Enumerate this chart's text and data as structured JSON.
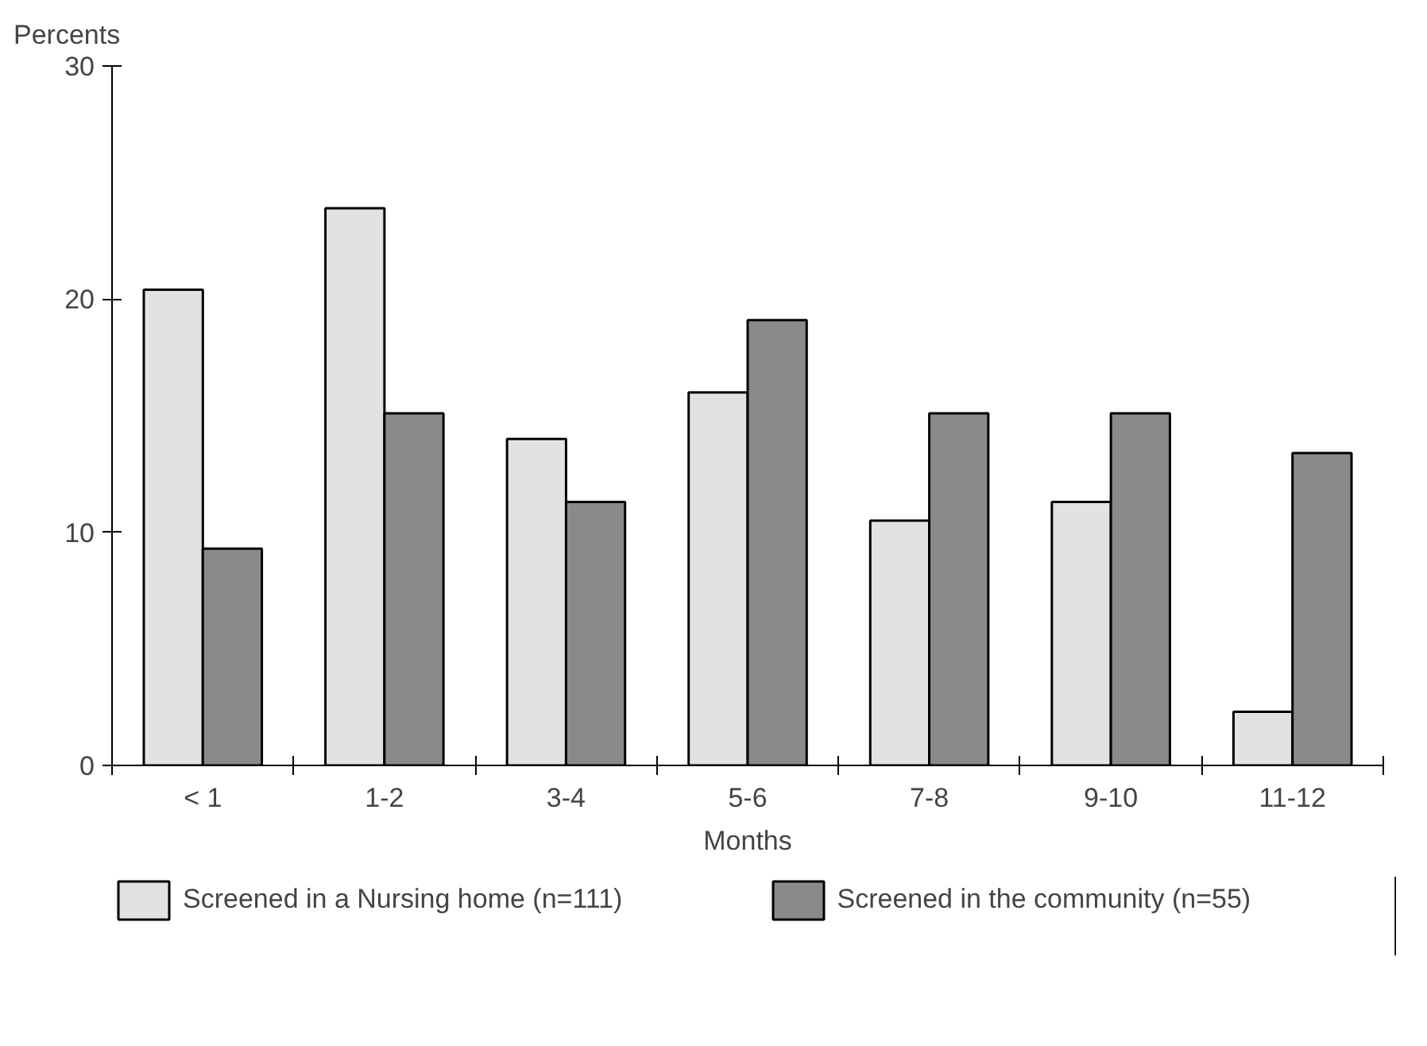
{
  "chart_data": {
    "type": "bar",
    "xlabel": "Months",
    "ylabel": "Percents",
    "categories": [
      "< 1",
      "1-2",
      "3-4",
      "5-6",
      "7-8",
      "9-10",
      "11-12"
    ],
    "series": [
      {
        "name": "Screened in a Nursing home (n=111)",
        "color": "#e2e2e2",
        "values": [
          20.4,
          23.9,
          14.0,
          16.0,
          10.5,
          11.3,
          2.3
        ]
      },
      {
        "name": "Screened in the community (n=55)",
        "color": "#8a8a8a",
        "values": [
          9.3,
          15.1,
          11.3,
          19.1,
          15.1,
          15.1,
          13.4
        ]
      }
    ],
    "ylim": [
      0,
      30
    ],
    "yticks": [
      0,
      10,
      20,
      30
    ],
    "grid": false,
    "legend": "bottom"
  }
}
